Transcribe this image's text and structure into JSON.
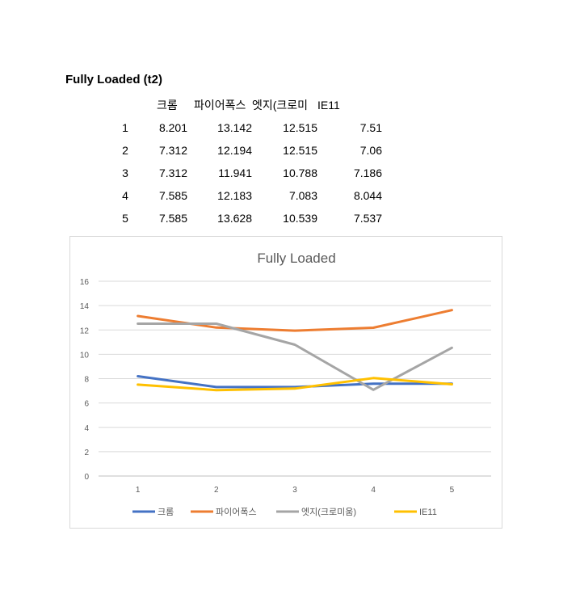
{
  "table": {
    "title": "Fully Loaded (t2)",
    "headers": [
      "",
      "크롬",
      "파이어폭스",
      "엣지(크로미",
      "IE11"
    ],
    "rows": [
      [
        "1",
        "8.201",
        "13.142",
        "12.515",
        "7.51"
      ],
      [
        "2",
        "7.312",
        "12.194",
        "12.515",
        "7.06"
      ],
      [
        "3",
        "7.312",
        "11.941",
        "10.788",
        "7.186"
      ],
      [
        "4",
        "7.585",
        "12.183",
        "7.083",
        "8.044"
      ],
      [
        "5",
        "7.585",
        "13.628",
        "10.539",
        "7.537"
      ]
    ]
  },
  "chart_data": {
    "type": "line",
    "title": "Fully Loaded",
    "x": [
      1,
      2,
      3,
      4,
      5
    ],
    "ylim": [
      0,
      16
    ],
    "yticks": [
      0,
      2,
      4,
      6,
      8,
      10,
      12,
      14,
      16
    ],
    "grid": true,
    "legend": "bottom",
    "series": [
      {
        "name": "크롬",
        "color": "#4472c4",
        "values": [
          8.201,
          7.312,
          7.312,
          7.585,
          7.585
        ]
      },
      {
        "name": "파이어폭스",
        "color": "#ed7d31",
        "values": [
          13.142,
          12.194,
          11.941,
          12.183,
          13.628
        ]
      },
      {
        "name": "엣지(크로미움)",
        "color": "#a5a5a5",
        "values": [
          12.515,
          12.515,
          10.788,
          7.083,
          10.539
        ]
      },
      {
        "name": "IE11",
        "color": "#ffc000",
        "values": [
          7.51,
          7.06,
          7.186,
          8.044,
          7.537
        ]
      }
    ]
  }
}
